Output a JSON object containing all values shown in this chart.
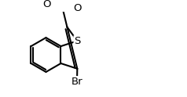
{
  "bg_color": "#ffffff",
  "line_color": "#000000",
  "line_width": 1.5,
  "figsize": [
    2.38,
    1.24
  ],
  "dpi": 100,
  "xlim": [
    0,
    2.38
  ],
  "ylim": [
    0,
    1.24
  ],
  "s_label": "S",
  "br_label": "Br",
  "o1_label": "O",
  "o2_label": "O",
  "font_size": 9.5
}
